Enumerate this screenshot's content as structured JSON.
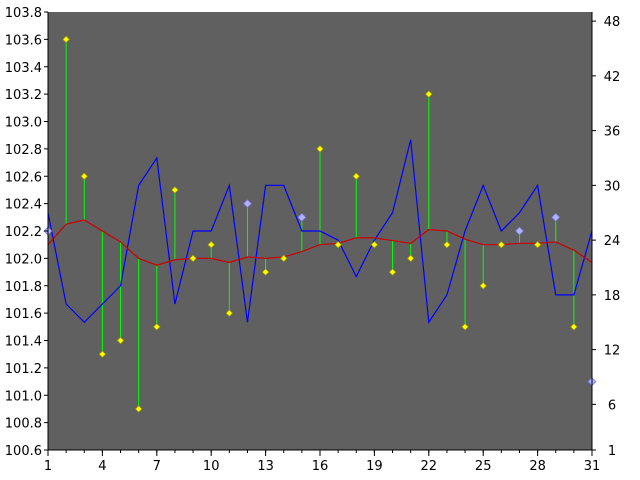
{
  "chart_data": {
    "type": "line",
    "x": [
      1,
      2,
      3,
      4,
      5,
      6,
      7,
      8,
      9,
      10,
      11,
      12,
      13,
      14,
      15,
      16,
      17,
      18,
      19,
      20,
      21,
      22,
      23,
      24,
      25,
      26,
      27,
      28,
      29,
      30,
      31
    ],
    "x_ticks": [
      "1",
      "4",
      "7",
      "10",
      "13",
      "16",
      "19",
      "22",
      "25",
      "28",
      "31"
    ],
    "xlim": [
      1,
      31
    ],
    "y_left_ticks": [
      "100.6",
      "100.8",
      "101.0",
      "101.2",
      "101.4",
      "101.6",
      "101.8",
      "102.0",
      "102.2",
      "102.4",
      "102.6",
      "102.8",
      "103.0",
      "103.2",
      "103.4",
      "103.6",
      "103.8"
    ],
    "y_left_lim": [
      100.6,
      103.8
    ],
    "y_right_ticks": [
      "1",
      "6",
      "12",
      "18",
      "24",
      "30",
      "36",
      "42",
      "48"
    ],
    "y_right_lim": [
      1,
      49
    ],
    "grid": false,
    "legend": "none",
    "series": [
      {
        "role": "yellow-points-left-axis",
        "values": [
          102.2,
          103.6,
          102.6,
          101.3,
          101.4,
          100.9,
          101.5,
          102.5,
          102.0,
          102.1,
          101.6,
          102.4,
          101.9,
          102.0,
          102.3,
          102.8,
          102.1,
          102.6,
          102.1,
          101.9,
          102.0,
          103.2,
          102.1,
          101.5,
          101.8,
          102.1,
          102.2,
          102.1,
          102.3,
          101.5,
          101.1
        ]
      },
      {
        "role": "red-moving-average-left-axis",
        "values": [
          102.1,
          102.25,
          102.28,
          102.2,
          102.12,
          102.0,
          101.95,
          101.99,
          102.0,
          102.0,
          101.97,
          102.01,
          102.0,
          102.01,
          102.05,
          102.1,
          102.11,
          102.15,
          102.15,
          102.13,
          102.11,
          102.21,
          102.2,
          102.14,
          102.1,
          102.1,
          102.11,
          102.11,
          102.12,
          102.06,
          101.97
        ]
      },
      {
        "role": "blue-line-right-axis",
        "values": [
          27,
          17,
          15,
          17,
          19,
          30,
          33,
          17,
          25,
          25,
          30,
          15,
          30,
          30,
          25,
          25,
          24,
          20,
          24,
          27,
          35,
          15,
          18,
          25,
          30,
          25,
          27,
          30,
          18,
          18,
          25
        ]
      }
    ],
    "colors": {
      "background": "#606060",
      "yellow_points": "#ffff00",
      "red_line": "#cc0000",
      "blue_line": "#0000ff",
      "drop_lines": "#00ff00",
      "highlight_points": "#b0b0ff",
      "axis": "#000000"
    },
    "highlighted_points": [
      1,
      12,
      15,
      27,
      29,
      31
    ]
  }
}
